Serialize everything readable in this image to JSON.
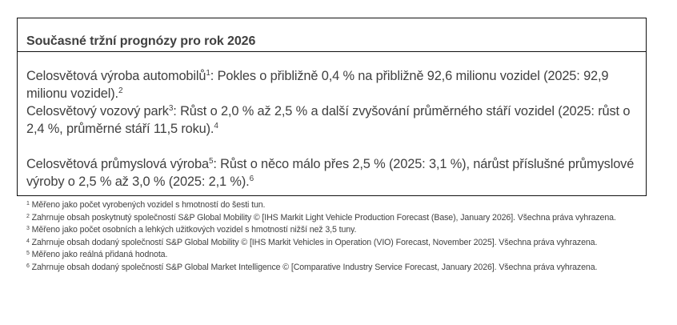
{
  "box": {
    "title": "Současné tržní prognózy pro rok 2026",
    "paragraphs": [
      {
        "label": "Celosvětová výroba automobilů",
        "label_ref": "1",
        "text": ": Pokles o přibližně 0,4 % na přibližně 92,6 milionu vozidel (2025: 92,9 milionu vozidel).",
        "end_ref": "2"
      },
      {
        "label": "Celosvětový vozový park",
        "label_ref": "3",
        "text": ": Růst o 2,0 % až 2,5 % a další zvyšování průměrného stáří vozidel (2025: růst o 2,4 %, průměrné stáří 11,5 roku).",
        "end_ref": "4"
      },
      {
        "label": "Celosvětová průmyslová výroba",
        "label_ref": "5",
        "text": ": Růst o něco málo přes 2,5 % (2025: 3,1 %), nárůst příslušné průmyslové výroby o 2,5 % až 3,0 % (2025: 2,1 %).",
        "end_ref": "6"
      }
    ]
  },
  "footnotes": [
    {
      "num": "1",
      "text": " Měřeno jako počet vyrobených vozidel s hmotností do šesti tun."
    },
    {
      "num": "2",
      "text": " Zahrnuje obsah poskytnutý společností S&P Global Mobility © [IHS Markit Light Vehicle Production Forecast (Base), January 2026]. Všechna práva vyhrazena."
    },
    {
      "num": "3",
      "text": " Měřeno jako počet osobních a lehkých užitkových vozidel s hmotností nižší než 3,5 tuny."
    },
    {
      "num": "4",
      "text": " Zahrnuje obsah dodaný společností S&P Global Mobility © [IHS Markit Vehicles in Operation (VIO) Forecast, November 2025]. Všechna práva vyhrazena."
    },
    {
      "num": "5",
      "text": " Měřeno jako reálná přidaná hodnota."
    },
    {
      "num": "6",
      "text": " Zahrnuje obsah dodaný společností S&P Global Market Intelligence © [Comparative Industry Service Forecast, January 2026]. Všechna práva vyhrazena."
    }
  ]
}
